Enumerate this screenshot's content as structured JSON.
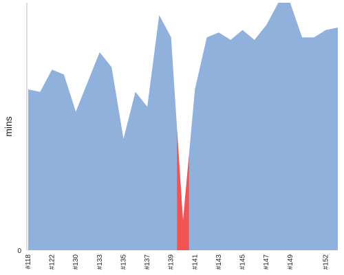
{
  "chart_data": {
    "type": "area",
    "title": "",
    "xlabel": "",
    "ylabel": "mins",
    "y_tick_labels": [
      "0"
    ],
    "x_tick_labels": [
      "#118",
      "#122",
      "#130",
      "#133",
      "#135",
      "#137",
      "#139",
      "#141",
      "#143",
      "#145",
      "#147",
      "#149",
      "#152"
    ],
    "ylim": [
      0,
      100
    ],
    "grid": false,
    "legend": "none",
    "colors": {
      "normal": "#8fb1dc",
      "failed": "#f25454",
      "axis": "#bbbbbb"
    },
    "series": [
      {
        "values": [
          65,
          64,
          73,
          71,
          56,
          68,
          80,
          74,
          45,
          64,
          58,
          95,
          86,
          12,
          65,
          86,
          88,
          85,
          89,
          85,
          91,
          102,
          102,
          86,
          86,
          89,
          90
        ],
        "failed_index": 13
      }
    ],
    "tick_positions": [
      0,
      2,
      4,
      6,
      8,
      10,
      12,
      14,
      16,
      18,
      20,
      22,
      25
    ]
  }
}
